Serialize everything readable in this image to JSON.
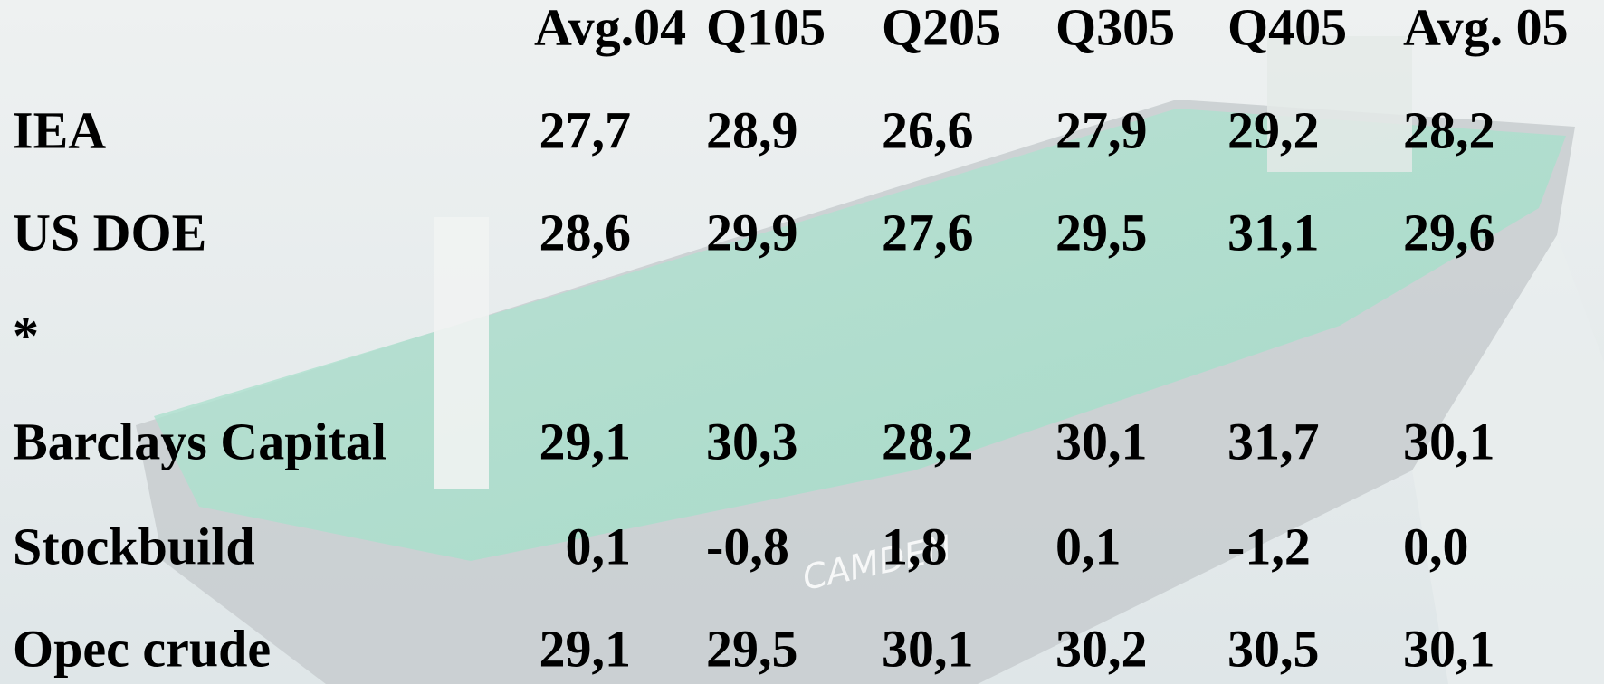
{
  "table": {
    "header": [
      "Avg.04",
      "Q105",
      "Q205",
      "Q305",
      "Q405",
      "Avg. 05"
    ],
    "rows": [
      [
        "IEA",
        "27,7",
        "28,9",
        "26,6",
        "27,9",
        "29,2",
        "28,2"
      ],
      [
        "US DOE",
        "28,6",
        "29,9",
        "27,6",
        "29,5",
        "31,1",
        "29,6"
      ],
      [
        "*"
      ],
      [
        "Barclays Capital",
        "29,1",
        "30,3",
        "28,2",
        "30,1",
        "31,7",
        "30,1"
      ],
      [
        "Stockbuild",
        "0,1",
        "-0,8",
        "1,8",
        "0,1",
        "-1,2",
        "0,0"
      ],
      [
        "Opec crude",
        "29,1",
        "29,5",
        "30,1",
        "30,2",
        "30,5",
        "30,1"
      ]
    ]
  },
  "ship_label": "CAMDEN"
}
